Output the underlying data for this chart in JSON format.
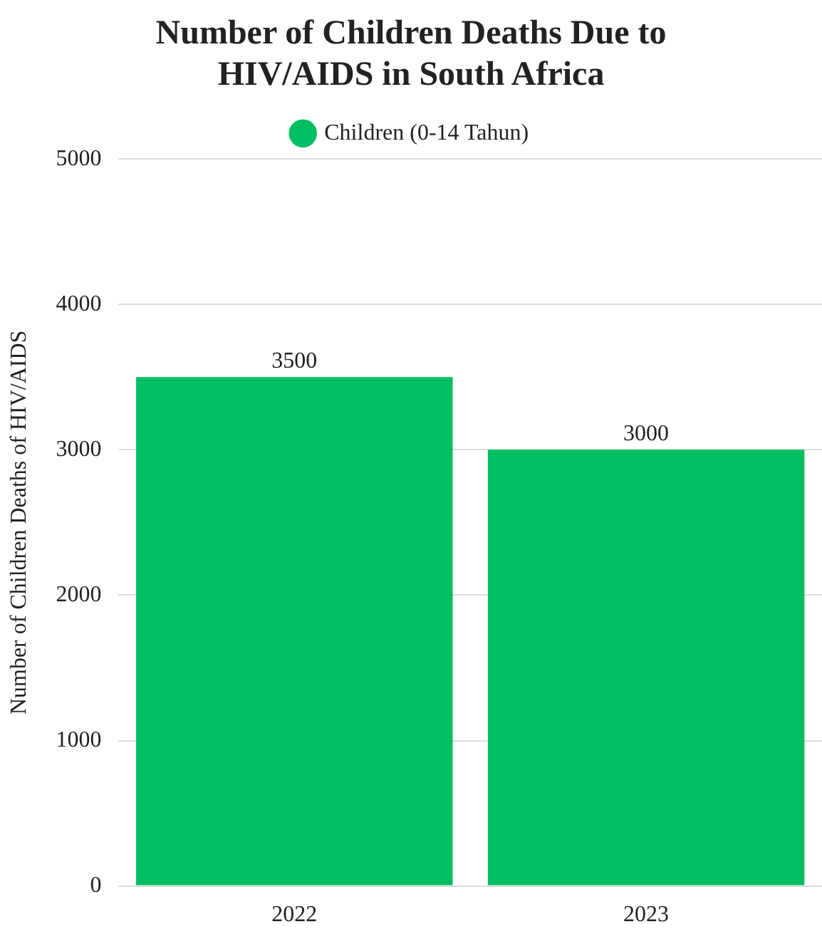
{
  "chart_data": {
    "type": "bar",
    "title": "Number of Children Deaths Due to HIV/AIDS in South Africa",
    "ylabel": "Number of Children Deaths of HIV/AIDS",
    "categories": [
      "2022",
      "2023"
    ],
    "series": [
      {
        "name": "Children (0-14 Tahun)",
        "color": "#00bf63",
        "values": [
          3500,
          3000
        ]
      }
    ],
    "ylim": [
      0,
      5000
    ],
    "yticks": [
      0,
      1000,
      2000,
      3000,
      4000,
      5000
    ],
    "grid": "y",
    "legend": "top",
    "data_labels": true
  }
}
